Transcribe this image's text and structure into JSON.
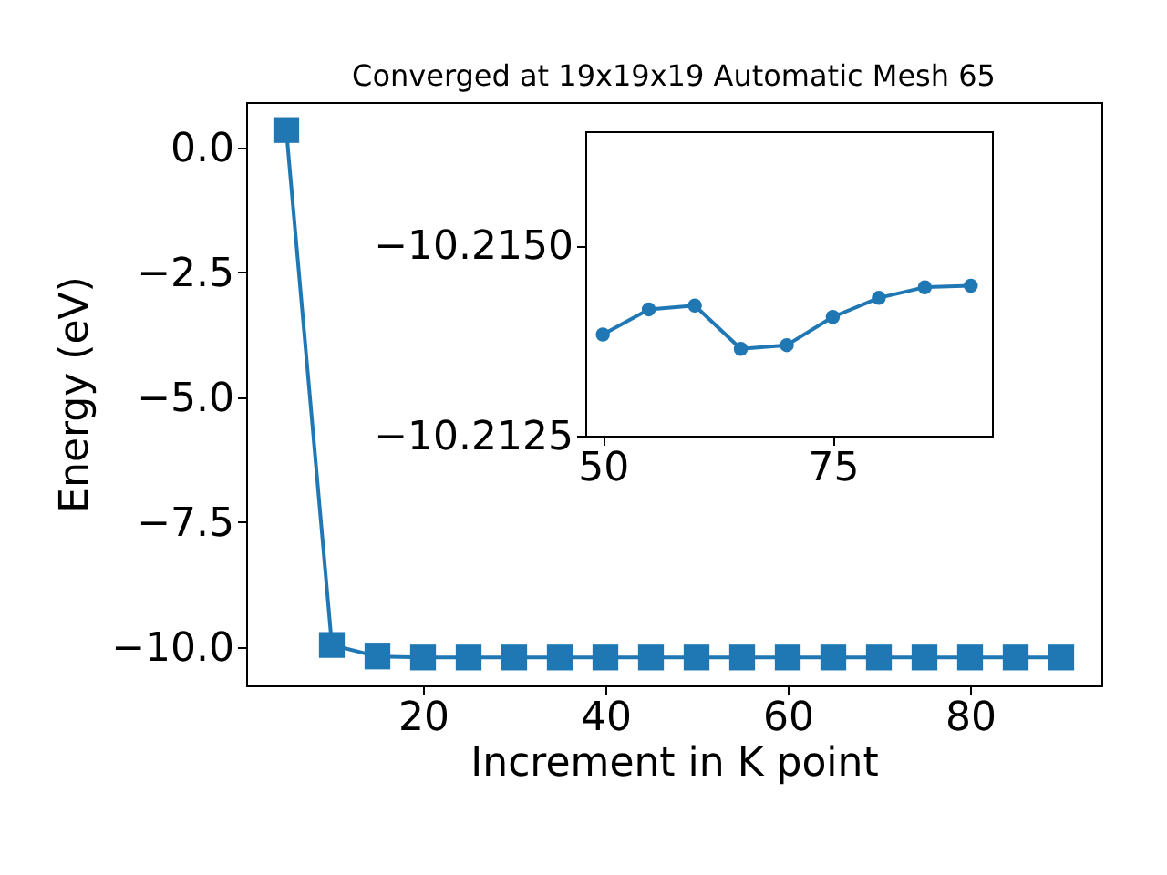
{
  "chart_data": [
    {
      "type": "line",
      "title": "Converged at 19x19x19 Automatic Mesh 65",
      "xlabel": "Increment in K point",
      "ylabel": "Energy (eV)",
      "marker": "square",
      "grid": false,
      "x": [
        5,
        10,
        15,
        20,
        25,
        30,
        35,
        40,
        45,
        50,
        55,
        60,
        65,
        70,
        75,
        80,
        85,
        90
      ],
      "series": [
        {
          "color": "#1f77b4",
          "values": [
            0.35,
            -9.96,
            -10.19,
            -10.21,
            -10.21,
            -10.21,
            -10.21,
            -10.21,
            -10.21,
            -10.21,
            -10.21,
            -10.21,
            -10.21,
            -10.21,
            -10.21,
            -10.21,
            -10.21,
            -10.21
          ]
        }
      ],
      "xlim": [
        0.6,
        94.4
      ],
      "ylim": [
        -10.77,
        0.91
      ],
      "xticks": [
        20,
        40,
        60,
        80
      ],
      "yticks": [
        {
          "value": 0,
          "label": "0.0"
        },
        {
          "value": -2.5,
          "label": "−2.5"
        },
        {
          "value": -5,
          "label": "−5.0"
        },
        {
          "value": -7.5,
          "label": "−7.5"
        },
        {
          "value": -10,
          "label": "−10.0"
        }
      ]
    },
    {
      "type": "line",
      "marker": "circle",
      "grid": false,
      "x": [
        50,
        55,
        60,
        65,
        70,
        75,
        80,
        85,
        90
      ],
      "series": [
        {
          "color": "#1f77b4",
          "values": [
            -10.21383,
            -10.21416,
            -10.21421,
            -10.21364,
            -10.21369,
            -10.21406,
            -10.21431,
            -10.21445,
            -10.21447
          ]
        }
      ],
      "xlim": [
        48.1,
        92.3
      ],
      "ylim": [
        -10.2125,
        -10.2165
      ],
      "xticks": [
        50,
        75
      ],
      "yticks": [
        {
          "value": -10.215,
          "label": "−10.2150"
        },
        {
          "value": -10.2125,
          "label": "−10.2125"
        }
      ]
    }
  ]
}
